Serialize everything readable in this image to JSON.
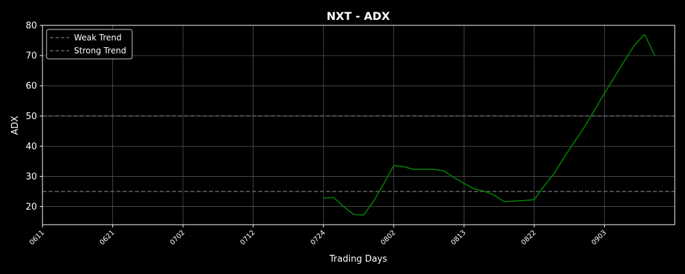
{
  "chart_data": {
    "type": "line",
    "title": "NXT - ADX",
    "xlabel": "Trading Days",
    "ylabel": "ADX",
    "ylim": [
      14,
      80
    ],
    "yticks": [
      20,
      30,
      40,
      50,
      60,
      70,
      80
    ],
    "xticks": [
      {
        "label": "0611",
        "index": 0
      },
      {
        "label": "0621",
        "index": 7
      },
      {
        "label": "0702",
        "index": 14
      },
      {
        "label": "0712",
        "index": 21
      },
      {
        "label": "0724",
        "index": 28
      },
      {
        "label": "0802",
        "index": 35
      },
      {
        "label": "0813",
        "index": 42
      },
      {
        "label": "0822",
        "index": 49
      },
      {
        "label": "0903",
        "index": 56
      }
    ],
    "xlim": [
      0,
      63
    ],
    "grid": true,
    "legend_position": "top-left",
    "reference_lines": [
      {
        "name": "Weak Trend",
        "value": 25,
        "color": "#666666"
      },
      {
        "name": "Strong Trend",
        "value": 50,
        "color": "#666666"
      }
    ],
    "series": [
      {
        "color": "#008000",
        "x": [
          28,
          29,
          30,
          31,
          32,
          33,
          34,
          35,
          36,
          37,
          38,
          39,
          40,
          41,
          42,
          43,
          44,
          45,
          46,
          47,
          48,
          49,
          50,
          51,
          52,
          53,
          54,
          55,
          56,
          57,
          58,
          59,
          60,
          61
        ],
        "y": [
          22.8,
          23.0,
          20.0,
          17.4,
          17.2,
          21.8,
          27.5,
          33.6,
          33.2,
          32.3,
          32.3,
          32.3,
          31.8,
          29.6,
          27.7,
          25.9,
          25.1,
          23.8,
          21.6,
          21.8,
          22.0,
          22.3,
          26.9,
          31.0,
          36.4,
          41.4,
          46.3,
          51.9,
          57.5,
          62.9,
          68.3,
          73.5,
          77.0,
          70.1
        ]
      }
    ]
  }
}
